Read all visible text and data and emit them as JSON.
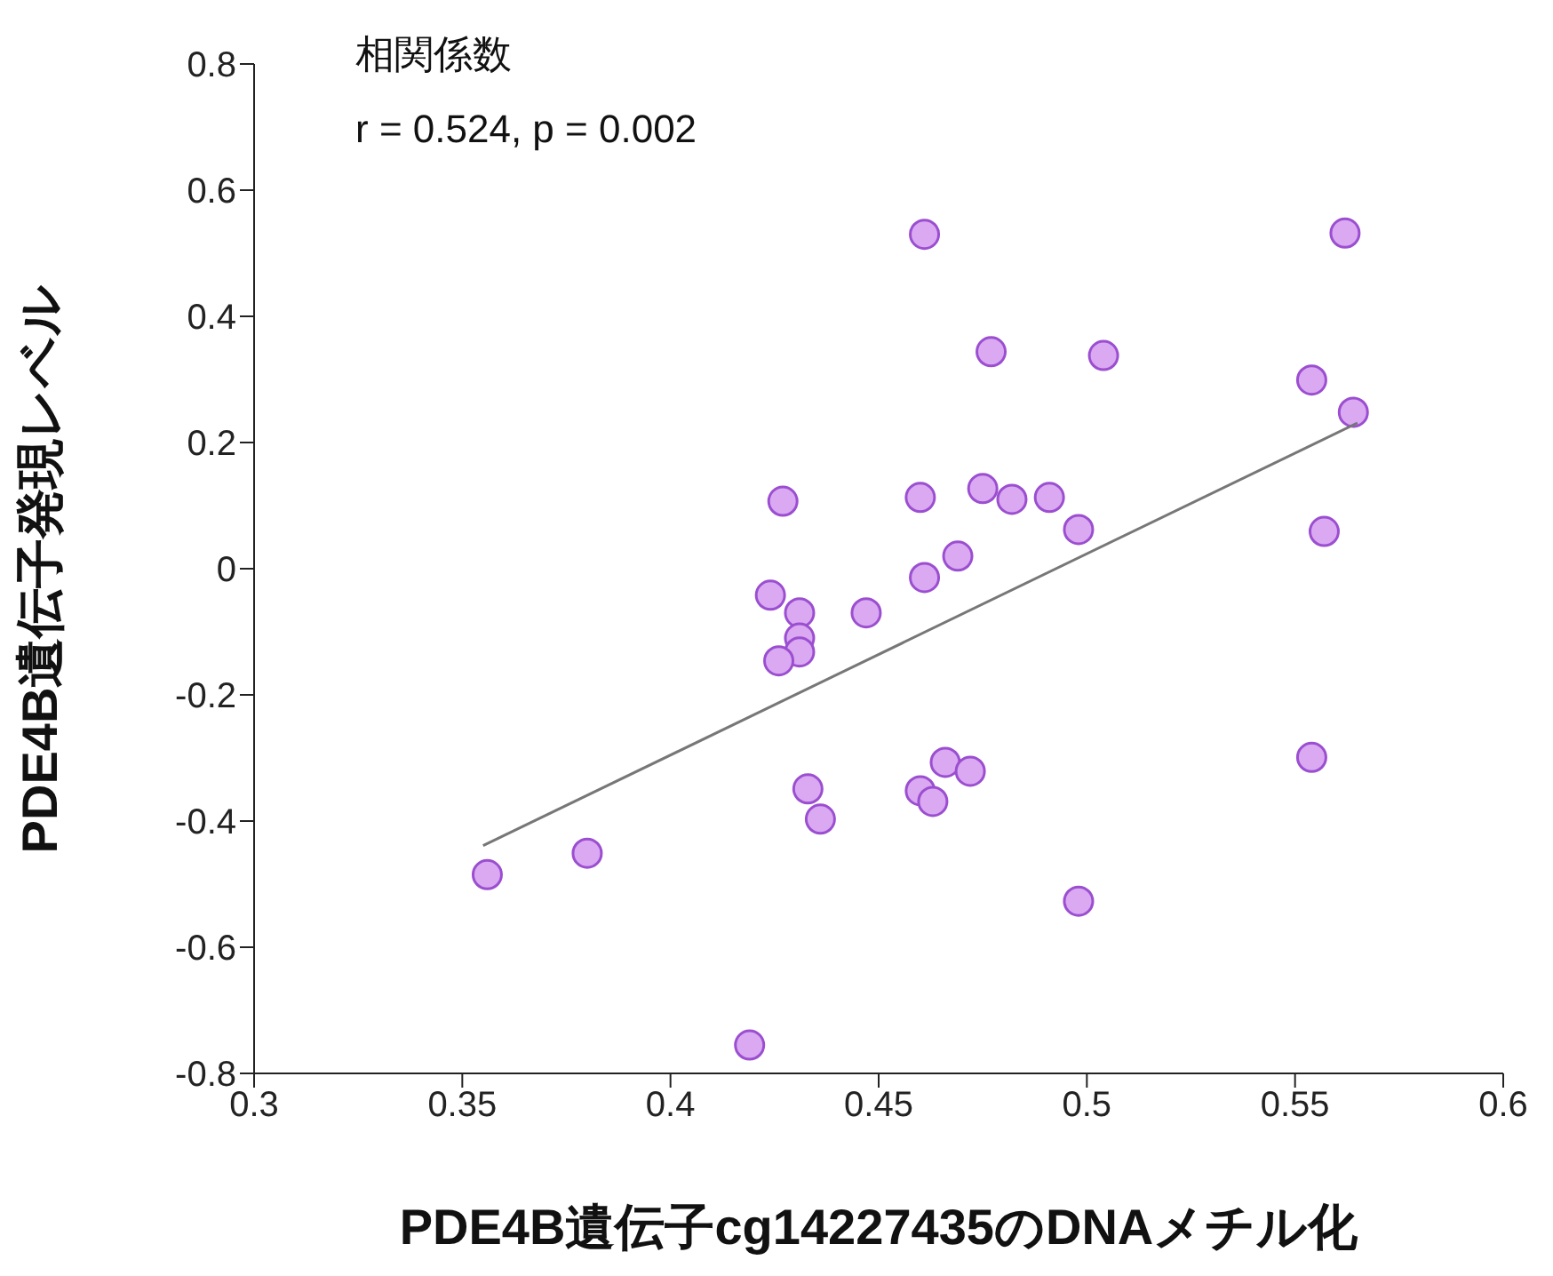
{
  "chart_data": {
    "type": "scatter",
    "xlabel": "PDE4B遺伝子cg14227435のDNAメチル化",
    "ylabel": "PDE4B遺伝子発現レベル",
    "annotations": [
      "相関係数",
      "r = 0.524, p = 0.002"
    ],
    "xlim": [
      0.3,
      0.6
    ],
    "xticks": [
      0.3,
      0.35,
      0.4,
      0.45,
      0.5,
      0.55,
      0.6
    ],
    "ylim": [
      -0.8,
      0.8
    ],
    "yticks": [
      -0.8,
      -0.6,
      -0.4,
      -0.2,
      0,
      0.2,
      0.4,
      0.6,
      0.8
    ],
    "grid": false,
    "legend": false,
    "series": [
      {
        "marker": "circle",
        "color": "#dba8f2",
        "x": [
          0.356,
          0.38,
          0.419,
          0.427,
          0.424,
          0.431,
          0.431,
          0.431,
          0.426,
          0.433,
          0.436,
          0.447,
          0.46,
          0.461,
          0.461,
          0.46,
          0.463,
          0.466,
          0.469,
          0.472,
          0.475,
          0.477,
          0.482,
          0.491,
          0.498,
          0.498,
          0.504,
          0.554,
          0.554,
          0.557,
          0.562,
          0.564
        ],
        "values": [
          -0.485,
          -0.451,
          -0.755,
          0.107,
          -0.042,
          -0.07,
          -0.11,
          -0.132,
          -0.146,
          -0.349,
          -0.397,
          -0.07,
          0.113,
          -0.014,
          0.53,
          -0.352,
          -0.369,
          -0.307,
          0.02,
          -0.321,
          0.127,
          0.344,
          0.11,
          0.113,
          0.062,
          -0.527,
          0.338,
          -0.299,
          0.299,
          0.059,
          0.532,
          0.248
        ]
      },
      {
        "type": "line",
        "marker": "none",
        "color": "#777777",
        "line_style": "solid",
        "x": [
          0.355,
          0.565
        ],
        "values": [
          -0.439,
          0.231
        ]
      }
    ]
  }
}
